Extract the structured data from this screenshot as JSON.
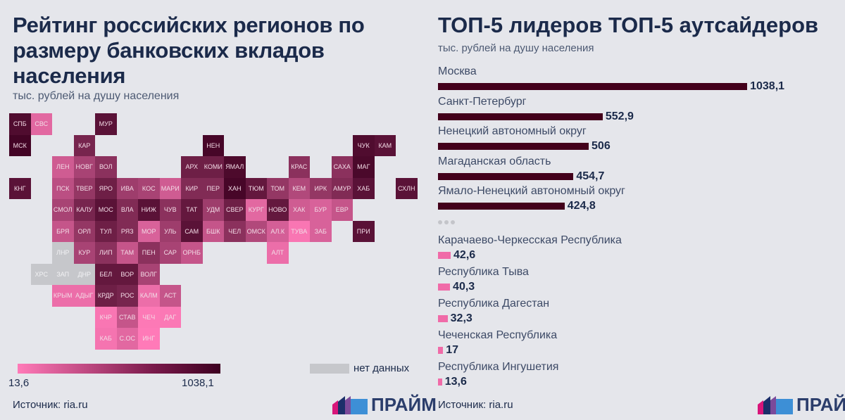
{
  "left": {
    "title": "Рейтинг российских регионов по размеру банковских вкладов населения",
    "subtitle": "тыс. рублей на душу населения",
    "legend": {
      "min": "13,6",
      "max": "1038,1",
      "nodata": "нет данных",
      "color_low": "#ff7ab8",
      "color_high": "#3d0020",
      "color_nodata": "#c6c7cb"
    },
    "source": "Источник: ria.ru",
    "logo": "ПРАЙМ"
  },
  "right": {
    "title": "ТОП-5 лидеров ТОП-5 аутсайдеров",
    "subtitle": "тыс. рублей на душу населения",
    "source": "Источник: ria.ru",
    "logo": "ПРАЙМ"
  },
  "chart_data": [
    {
      "type": "heatmap",
      "title": "Рейтинг российских регионов по размеру банковских вкладов населения",
      "note": "shade: 0 = 13,6, 1 = 1038,1; null = нет данных",
      "tiles": [
        {
          "code": "СПБ",
          "row": 0,
          "col": 0,
          "shade": 0.9
        },
        {
          "code": "СВС",
          "row": 0,
          "col": 1,
          "shade": 0.15
        },
        {
          "code": "МУР",
          "row": 0,
          "col": 4,
          "shade": 0.85
        },
        {
          "code": "МСК",
          "row": 1,
          "col": 0,
          "shade": 0.97
        },
        {
          "code": "КАР",
          "row": 1,
          "col": 3,
          "shade": 0.7
        },
        {
          "code": "НЕН",
          "row": 1,
          "col": 9,
          "shade": 0.95
        },
        {
          "code": "ЧУК",
          "row": 1,
          "col": 16,
          "shade": 0.9
        },
        {
          "code": "КАМ",
          "row": 1,
          "col": 17,
          "shade": 0.85
        },
        {
          "code": "ЛЕН",
          "row": 2,
          "col": 2,
          "shade": 0.25
        },
        {
          "code": "НОВГ",
          "row": 2,
          "col": 3,
          "shade": 0.45
        },
        {
          "code": "ВОЛ",
          "row": 2,
          "col": 4,
          "shade": 0.6
        },
        {
          "code": "АРХ",
          "row": 2,
          "col": 8,
          "shade": 0.75
        },
        {
          "code": "КОМИ",
          "row": 2,
          "col": 9,
          "shade": 0.75
        },
        {
          "code": "ЯМАЛ",
          "row": 2,
          "col": 10,
          "shade": 0.92
        },
        {
          "code": "КРАС",
          "row": 2,
          "col": 13,
          "shade": 0.6
        },
        {
          "code": "САХА",
          "row": 2,
          "col": 15,
          "shade": 0.6
        },
        {
          "code": "МАГ",
          "row": 2,
          "col": 16,
          "shade": 0.93
        },
        {
          "code": "КНГ",
          "row": 3,
          "col": 0,
          "shade": 0.85
        },
        {
          "code": "ПСК",
          "row": 3,
          "col": 2,
          "shade": 0.35
        },
        {
          "code": "ТВЕР",
          "row": 3,
          "col": 3,
          "shade": 0.55
        },
        {
          "code": "ЯРО",
          "row": 3,
          "col": 4,
          "shade": 0.75
        },
        {
          "code": "ИВА",
          "row": 3,
          "col": 5,
          "shade": 0.5
        },
        {
          "code": "КОС",
          "row": 3,
          "col": 6,
          "shade": 0.45
        },
        {
          "code": "МАРИ",
          "row": 3,
          "col": 7,
          "shade": 0.25
        },
        {
          "code": "КИР",
          "row": 3,
          "col": 8,
          "shade": 0.65
        },
        {
          "code": "ПЕР",
          "row": 3,
          "col": 9,
          "shade": 0.65
        },
        {
          "code": "ХАН",
          "row": 3,
          "col": 10,
          "shade": 0.95
        },
        {
          "code": "ТЮМ",
          "row": 3,
          "col": 11,
          "shade": 0.8
        },
        {
          "code": "ТОМ",
          "row": 3,
          "col": 12,
          "shade": 0.55
        },
        {
          "code": "КЕМ",
          "row": 3,
          "col": 13,
          "shade": 0.4
        },
        {
          "code": "ИРК",
          "row": 3,
          "col": 14,
          "shade": 0.55
        },
        {
          "code": "АМУР",
          "row": 3,
          "col": 15,
          "shade": 0.65
        },
        {
          "code": "ХАБ",
          "row": 3,
          "col": 16,
          "shade": 0.85
        },
        {
          "code": "СХЛН",
          "row": 3,
          "col": 18,
          "shade": 0.85
        },
        {
          "code": "СМОЛ",
          "row": 4,
          "col": 2,
          "shade": 0.45
        },
        {
          "code": "КАЛУ",
          "row": 4,
          "col": 3,
          "shade": 0.7
        },
        {
          "code": "МОС",
          "row": 4,
          "col": 4,
          "shade": 0.85
        },
        {
          "code": "ВЛА",
          "row": 4,
          "col": 5,
          "shade": 0.65
        },
        {
          "code": "НИЖ",
          "row": 4,
          "col": 6,
          "shade": 0.85
        },
        {
          "code": "ЧУВ",
          "row": 4,
          "col": 7,
          "shade": 0.6
        },
        {
          "code": "ТАТ",
          "row": 4,
          "col": 8,
          "shade": 0.8
        },
        {
          "code": "УДМ",
          "row": 4,
          "col": 9,
          "shade": 0.5
        },
        {
          "code": "СВЕР",
          "row": 4,
          "col": 10,
          "shade": 0.75
        },
        {
          "code": "КУРГ",
          "row": 4,
          "col": 11,
          "shade": 0.15
        },
        {
          "code": "НОВО",
          "row": 4,
          "col": 12,
          "shade": 0.8
        },
        {
          "code": "ХАК",
          "row": 4,
          "col": 13,
          "shade": 0.25
        },
        {
          "code": "БУР",
          "row": 4,
          "col": 14,
          "shade": 0.2
        },
        {
          "code": "ЕВР",
          "row": 4,
          "col": 15,
          "shade": 0.3
        },
        {
          "code": "БРЯ",
          "row": 5,
          "col": 2,
          "shade": 0.3
        },
        {
          "code": "ОРЛ",
          "row": 5,
          "col": 3,
          "shade": 0.55
        },
        {
          "code": "ТУЛ",
          "row": 5,
          "col": 4,
          "shade": 0.75
        },
        {
          "code": "РЯЗ",
          "row": 5,
          "col": 5,
          "shade": 0.65
        },
        {
          "code": "МОР",
          "row": 5,
          "col": 6,
          "shade": 0.2
        },
        {
          "code": "УЛЬ",
          "row": 5,
          "col": 7,
          "shade": 0.5
        },
        {
          "code": "САМ",
          "row": 5,
          "col": 8,
          "shade": 0.85
        },
        {
          "code": "БШК",
          "row": 5,
          "col": 9,
          "shade": 0.3
        },
        {
          "code": "ЧЕЛ",
          "row": 5,
          "col": 10,
          "shade": 0.6
        },
        {
          "code": "ОМСК",
          "row": 5,
          "col": 11,
          "shade": 0.4
        },
        {
          "code": "АЛ.К",
          "row": 5,
          "col": 12,
          "shade": 0.22
        },
        {
          "code": "ТУВА",
          "row": 5,
          "col": 13,
          "shade": 0.03
        },
        {
          "code": "ЗАБ",
          "row": 5,
          "col": 14,
          "shade": 0.2
        },
        {
          "code": "ПРИ",
          "row": 5,
          "col": 16,
          "shade": 0.85
        },
        {
          "code": "ЛНР",
          "row": 6,
          "col": 2,
          "shade": null
        },
        {
          "code": "КУР",
          "row": 6,
          "col": 3,
          "shade": 0.45
        },
        {
          "code": "ЛИП",
          "row": 6,
          "col": 4,
          "shade": 0.6
        },
        {
          "code": "ТАМ",
          "row": 6,
          "col": 5,
          "shade": 0.3
        },
        {
          "code": "ПЕН",
          "row": 6,
          "col": 6,
          "shade": 0.6
        },
        {
          "code": "САР",
          "row": 6,
          "col": 7,
          "shade": 0.45
        },
        {
          "code": "ОРНБ",
          "row": 6,
          "col": 8,
          "shade": 0.3
        },
        {
          "code": "АЛТ",
          "row": 6,
          "col": 12,
          "shade": 0.1
        },
        {
          "code": "ХРС",
          "row": 7,
          "col": 1,
          "shade": null
        },
        {
          "code": "ЗАП",
          "row": 7,
          "col": 2,
          "shade": null
        },
        {
          "code": "ДНР",
          "row": 7,
          "col": 3,
          "shade": null
        },
        {
          "code": "БЕЛ",
          "row": 7,
          "col": 4,
          "shade": 0.8
        },
        {
          "code": "ВОР",
          "row": 7,
          "col": 5,
          "shade": 0.8
        },
        {
          "code": "ВОЛГ",
          "row": 7,
          "col": 6,
          "shade": 0.45
        },
        {
          "code": "КРЫМ",
          "row": 8,
          "col": 2,
          "shade": 0.1
        },
        {
          "code": "АДЫГ",
          "row": 8,
          "col": 3,
          "shade": 0.1
        },
        {
          "code": "КРДР",
          "row": 8,
          "col": 4,
          "shade": 0.75
        },
        {
          "code": "РОС",
          "row": 8,
          "col": 5,
          "shade": 0.7
        },
        {
          "code": "КАЛМ",
          "row": 8,
          "col": 6,
          "shade": 0.1
        },
        {
          "code": "АСТ",
          "row": 8,
          "col": 7,
          "shade": 0.3
        },
        {
          "code": "КЧР",
          "row": 9,
          "col": 4,
          "shade": 0.03
        },
        {
          "code": "СТАВ",
          "row": 9,
          "col": 5,
          "shade": 0.3
        },
        {
          "code": "ЧЕЧ",
          "row": 9,
          "col": 6,
          "shade": 0.01
        },
        {
          "code": "ДАГ",
          "row": 9,
          "col": 7,
          "shade": 0.02
        },
        {
          "code": "КАБ",
          "row": 10,
          "col": 4,
          "shade": 0.05
        },
        {
          "code": "С.ОС",
          "row": 10,
          "col": 5,
          "shade": 0.15
        },
        {
          "code": "ИНГ",
          "row": 10,
          "col": 6,
          "shade": 0.0
        }
      ]
    },
    {
      "type": "bar",
      "orientation": "horizontal",
      "title": "ТОП-5 лидеров ТОП-5 аутсайдеров",
      "leaders": [
        {
          "name": "Москва",
          "value": 1038.1,
          "label": "1038,1"
        },
        {
          "name": "Санкт-Петербург",
          "value": 552.9,
          "label": "552,9"
        },
        {
          "name": "Ненецкий автономный округ",
          "value": 506,
          "label": "506"
        },
        {
          "name": "Магаданская область",
          "value": 454.7,
          "label": "454,7"
        },
        {
          "name": "Ямало-Ненецкий автономный округ",
          "value": 424.8,
          "label": "424,8"
        }
      ],
      "outsiders": [
        {
          "name": "Карачаево-Черкесская Республика",
          "value": 42.6,
          "label": "42,6"
        },
        {
          "name": "Республика Тыва",
          "value": 40.3,
          "label": "40,3"
        },
        {
          "name": "Республика Дагестан",
          "value": 32.3,
          "label": "32,3"
        },
        {
          "name": "Чеченская Республика",
          "value": 17,
          "label": "17"
        },
        {
          "name": "Республика Ингушетия",
          "value": 13.6,
          "label": "13,6"
        }
      ],
      "leader_color": "#43001b",
      "outsider_color": "#f06ba8"
    }
  ]
}
